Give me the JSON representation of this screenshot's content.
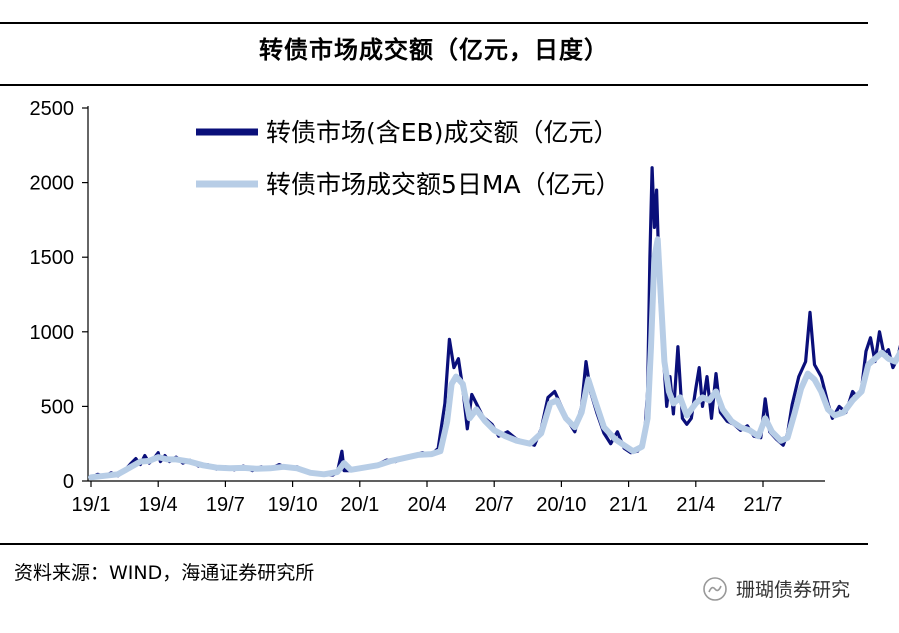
{
  "title": "转债市场成交额（亿元，日度）",
  "source": "资料来源：WIND，海通证券研究所",
  "watermark": "珊瑚债券研究",
  "colors": {
    "raw": "#0a0f7a",
    "ma": "#b7cde6",
    "axis": "#000000"
  },
  "chart_data": {
    "type": "line",
    "ylim": [
      0,
      2500
    ],
    "yticks": [
      0,
      500,
      1000,
      1500,
      2000,
      2500
    ],
    "xticks": [
      "19/1",
      "19/4",
      "19/7",
      "19/10",
      "20/1",
      "20/4",
      "20/7",
      "20/10",
      "21/1",
      "21/4",
      "21/7"
    ],
    "xlim_months": [
      0,
      34.9
    ],
    "legend_position": "top-left",
    "series": [
      {
        "name": "转债市场(含EB)成交额（亿元）",
        "color": "#0a0f7a",
        "points": [
          [
            0.0,
            20
          ],
          [
            0.3,
            45
          ],
          [
            0.6,
            30
          ],
          [
            0.9,
            55
          ],
          [
            1.2,
            35
          ],
          [
            1.5,
            70
          ],
          [
            1.8,
            120
          ],
          [
            2.0,
            150
          ],
          [
            2.2,
            110
          ],
          [
            2.4,
            170
          ],
          [
            2.6,
            120
          ],
          [
            2.8,
            150
          ],
          [
            3.0,
            190
          ],
          [
            3.1,
            130
          ],
          [
            3.3,
            170
          ],
          [
            3.5,
            130
          ],
          [
            3.8,
            160
          ],
          [
            4.1,
            120
          ],
          [
            4.4,
            140
          ],
          [
            4.8,
            100
          ],
          [
            5.2,
            110
          ],
          [
            5.6,
            80
          ],
          [
            6.0,
            95
          ],
          [
            6.4,
            75
          ],
          [
            6.8,
            100
          ],
          [
            7.2,
            70
          ],
          [
            7.6,
            95
          ],
          [
            8.0,
            80
          ],
          [
            8.4,
            110
          ],
          [
            8.8,
            85
          ],
          [
            9.2,
            95
          ],
          [
            9.6,
            60
          ],
          [
            10.0,
            50
          ],
          [
            10.4,
            45
          ],
          [
            10.8,
            40
          ],
          [
            11.0,
            60
          ],
          [
            11.2,
            200
          ],
          [
            11.3,
            70
          ],
          [
            11.6,
            70
          ],
          [
            12.0,
            85
          ],
          [
            12.4,
            100
          ],
          [
            12.8,
            110
          ],
          [
            13.2,
            140
          ],
          [
            13.6,
            130
          ],
          [
            14.0,
            160
          ],
          [
            14.4,
            170
          ],
          [
            14.8,
            190
          ],
          [
            15.2,
            175
          ],
          [
            15.5,
            220
          ],
          [
            15.8,
            520
          ],
          [
            16.0,
            950
          ],
          [
            16.2,
            760
          ],
          [
            16.4,
            820
          ],
          [
            16.6,
            620
          ],
          [
            16.8,
            350
          ],
          [
            17.0,
            580
          ],
          [
            17.2,
            520
          ],
          [
            17.5,
            430
          ],
          [
            17.9,
            380
          ],
          [
            18.2,
            300
          ],
          [
            18.6,
            330
          ],
          [
            19.0,
            280
          ],
          [
            19.4,
            260
          ],
          [
            19.8,
            240
          ],
          [
            20.1,
            350
          ],
          [
            20.4,
            560
          ],
          [
            20.7,
            600
          ],
          [
            21.0,
            500
          ],
          [
            21.3,
            400
          ],
          [
            21.6,
            330
          ],
          [
            21.9,
            500
          ],
          [
            22.1,
            800
          ],
          [
            22.3,
            600
          ],
          [
            22.6,
            450
          ],
          [
            22.9,
            320
          ],
          [
            23.2,
            250
          ],
          [
            23.5,
            330
          ],
          [
            23.8,
            220
          ],
          [
            24.1,
            190
          ],
          [
            24.4,
            200
          ],
          [
            24.7,
            280
          ],
          [
            24.85,
            600
          ],
          [
            24.95,
            1500
          ],
          [
            25.05,
            2100
          ],
          [
            25.15,
            1700
          ],
          [
            25.25,
            1950
          ],
          [
            25.4,
            1200
          ],
          [
            25.55,
            850
          ],
          [
            25.7,
            500
          ],
          [
            25.85,
            700
          ],
          [
            26.0,
            450
          ],
          [
            26.2,
            900
          ],
          [
            26.4,
            420
          ],
          [
            26.6,
            380
          ],
          [
            26.8,
            420
          ],
          [
            27.0,
            620
          ],
          [
            27.15,
            760
          ],
          [
            27.3,
            500
          ],
          [
            27.5,
            700
          ],
          [
            27.7,
            420
          ],
          [
            27.9,
            720
          ],
          [
            28.1,
            460
          ],
          [
            28.4,
            400
          ],
          [
            28.7,
            380
          ],
          [
            29.0,
            340
          ],
          [
            29.3,
            370
          ],
          [
            29.6,
            300
          ],
          [
            29.9,
            290
          ],
          [
            30.1,
            550
          ],
          [
            30.3,
            330
          ],
          [
            30.6,
            280
          ],
          [
            30.9,
            240
          ],
          [
            31.1,
            320
          ],
          [
            31.3,
            510
          ],
          [
            31.6,
            700
          ],
          [
            31.9,
            800
          ],
          [
            32.1,
            1130
          ],
          [
            32.3,
            780
          ],
          [
            32.6,
            700
          ],
          [
            32.9,
            520
          ],
          [
            33.1,
            420
          ],
          [
            33.4,
            500
          ],
          [
            33.7,
            460
          ],
          [
            34.0,
            600
          ],
          [
            34.2,
            560
          ],
          [
            34.4,
            620
          ],
          [
            34.6,
            870
          ],
          [
            34.8,
            960
          ],
          [
            35.0,
            800
          ],
          [
            35.2,
            1000
          ],
          [
            35.4,
            850
          ],
          [
            35.6,
            880
          ],
          [
            35.8,
            760
          ],
          [
            36.0,
            820
          ],
          [
            36.2,
            950
          ],
          [
            36.4,
            1120
          ],
          [
            36.55,
            750
          ]
        ]
      },
      {
        "name": "转债市场成交额5日MA（亿元）",
        "color": "#b7cde6",
        "points": [
          [
            0.0,
            25
          ],
          [
            0.6,
            35
          ],
          [
            1.2,
            45
          ],
          [
            1.8,
            95
          ],
          [
            2.2,
            130
          ],
          [
            2.6,
            135
          ],
          [
            3.0,
            160
          ],
          [
            3.4,
            145
          ],
          [
            3.8,
            145
          ],
          [
            4.4,
            130
          ],
          [
            5.0,
            105
          ],
          [
            5.6,
            90
          ],
          [
            6.2,
            85
          ],
          [
            6.8,
            88
          ],
          [
            7.4,
            82
          ],
          [
            8.0,
            85
          ],
          [
            8.6,
            95
          ],
          [
            9.2,
            85
          ],
          [
            9.8,
            55
          ],
          [
            10.4,
            45
          ],
          [
            11.0,
            60
          ],
          [
            11.3,
            120
          ],
          [
            11.6,
            75
          ],
          [
            12.2,
            90
          ],
          [
            12.8,
            105
          ],
          [
            13.4,
            135
          ],
          [
            14.0,
            155
          ],
          [
            14.6,
            175
          ],
          [
            15.2,
            180
          ],
          [
            15.6,
            200
          ],
          [
            15.9,
            400
          ],
          [
            16.1,
            650
          ],
          [
            16.3,
            700
          ],
          [
            16.6,
            650
          ],
          [
            16.9,
            420
          ],
          [
            17.2,
            480
          ],
          [
            17.6,
            400
          ],
          [
            18.0,
            340
          ],
          [
            18.5,
            300
          ],
          [
            19.0,
            270
          ],
          [
            19.6,
            250
          ],
          [
            20.1,
            320
          ],
          [
            20.5,
            520
          ],
          [
            20.8,
            540
          ],
          [
            21.2,
            420
          ],
          [
            21.6,
            360
          ],
          [
            21.9,
            460
          ],
          [
            22.2,
            680
          ],
          [
            22.5,
            540
          ],
          [
            22.9,
            360
          ],
          [
            23.4,
            280
          ],
          [
            23.8,
            240
          ],
          [
            24.2,
            200
          ],
          [
            24.6,
            230
          ],
          [
            24.85,
            420
          ],
          [
            25.0,
            900
          ],
          [
            25.15,
            1500
          ],
          [
            25.3,
            1620
          ],
          [
            25.45,
            1200
          ],
          [
            25.6,
            800
          ],
          [
            25.8,
            600
          ],
          [
            26.0,
            520
          ],
          [
            26.3,
            560
          ],
          [
            26.6,
            440
          ],
          [
            27.0,
            520
          ],
          [
            27.3,
            560
          ],
          [
            27.6,
            540
          ],
          [
            27.9,
            600
          ],
          [
            28.2,
            480
          ],
          [
            28.6,
            400
          ],
          [
            29.0,
            360
          ],
          [
            29.4,
            340
          ],
          [
            29.8,
            300
          ],
          [
            30.1,
            420
          ],
          [
            30.4,
            330
          ],
          [
            30.8,
            270
          ],
          [
            31.1,
            290
          ],
          [
            31.4,
            450
          ],
          [
            31.7,
            620
          ],
          [
            32.0,
            720
          ],
          [
            32.3,
            680
          ],
          [
            32.6,
            600
          ],
          [
            32.9,
            480
          ],
          [
            33.2,
            440
          ],
          [
            33.6,
            460
          ],
          [
            34.0,
            540
          ],
          [
            34.4,
            600
          ],
          [
            34.7,
            780
          ],
          [
            35.0,
            820
          ],
          [
            35.3,
            860
          ],
          [
            35.6,
            820
          ],
          [
            35.9,
            800
          ],
          [
            36.2,
            880
          ],
          [
            36.55,
            1000
          ]
        ]
      }
    ]
  }
}
